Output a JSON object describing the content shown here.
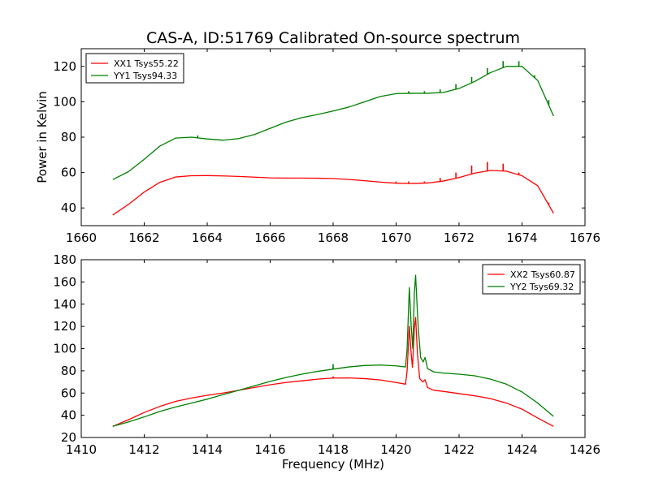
{
  "chart_data": [
    {
      "type": "line",
      "title": "CAS-A, ID:51769 Calibrated On-source spectrum",
      "xlabel": "",
      "ylabel": "Power in Kelvin",
      "xlim": [
        1660,
        1676
      ],
      "ylim": [
        30,
        130
      ],
      "x_ticks": [
        "1660",
        "1662",
        "1664",
        "1666",
        "1668",
        "1670",
        "1672",
        "1674",
        "1676"
      ],
      "y_ticks": [
        "40",
        "60",
        "80",
        "100",
        "120"
      ],
      "legend": "top-left",
      "grid": false,
      "series": [
        {
          "name": "XX1 Tsys55.22",
          "color": "#ff0000",
          "points": [
            [
              1661.0,
              36
            ],
            [
              1661.5,
              42
            ],
            [
              1662.0,
              49
            ],
            [
              1662.5,
              54.5
            ],
            [
              1663.0,
              57.5
            ],
            [
              1663.5,
              58.2
            ],
            [
              1664.0,
              58.3
            ],
            [
              1664.5,
              58.1
            ],
            [
              1665.0,
              57.8
            ],
            [
              1665.5,
              57.4
            ],
            [
              1666.0,
              57.0
            ],
            [
              1666.5,
              56.9
            ],
            [
              1667.0,
              56.9
            ],
            [
              1667.5,
              56.8
            ],
            [
              1668.0,
              56.6
            ],
            [
              1668.5,
              56.1
            ],
            [
              1669.0,
              55.4
            ],
            [
              1669.5,
              54.6
            ],
            [
              1670.0,
              54.0
            ],
            [
              1670.5,
              53.8
            ],
            [
              1671.0,
              54.1
            ],
            [
              1671.5,
              55.2
            ],
            [
              1672.0,
              57.2
            ],
            [
              1672.5,
              59.7
            ],
            [
              1673.0,
              61.2
            ],
            [
              1673.5,
              60.8
            ],
            [
              1674.0,
              58.2
            ],
            [
              1674.5,
              52.5
            ],
            [
              1675.0,
              37
            ]
          ],
          "spikes": [
            [
              1670.0,
              55
            ],
            [
              1670.4,
              55
            ],
            [
              1670.9,
              55
            ],
            [
              1671.4,
              57
            ],
            [
              1671.9,
              60
            ],
            [
              1672.4,
              64
            ],
            [
              1672.9,
              66
            ],
            [
              1673.4,
              65
            ],
            [
              1673.9,
              60
            ],
            [
              1674.4,
              54
            ],
            [
              1674.85,
              43
            ]
          ]
        },
        {
          "name": "YY1 Tsys94.33",
          "color": "#008000",
          "points": [
            [
              1661.0,
              56
            ],
            [
              1661.5,
              60.5
            ],
            [
              1662.0,
              67.5
            ],
            [
              1662.5,
              75
            ],
            [
              1663.0,
              79.5
            ],
            [
              1663.5,
              80.0
            ],
            [
              1664.0,
              79.0
            ],
            [
              1664.5,
              78.3
            ],
            [
              1665.0,
              79.2
            ],
            [
              1665.5,
              81.5
            ],
            [
              1666.0,
              85.0
            ],
            [
              1666.5,
              88.5
            ],
            [
              1667.0,
              91.0
            ],
            [
              1667.5,
              92.8
            ],
            [
              1668.0,
              94.8
            ],
            [
              1668.5,
              97.0
            ],
            [
              1669.0,
              100.0
            ],
            [
              1669.5,
              103.0
            ],
            [
              1670.0,
              104.6
            ],
            [
              1670.5,
              104.8
            ],
            [
              1671.0,
              104.8
            ],
            [
              1671.5,
              105.3
            ],
            [
              1672.0,
              107.5
            ],
            [
              1672.5,
              111.5
            ],
            [
              1673.0,
              116.5
            ],
            [
              1673.5,
              120.0
            ],
            [
              1674.0,
              120.0
            ],
            [
              1674.5,
              112.0
            ],
            [
              1675.0,
              92
            ]
          ],
          "spikes": [
            [
              1663.7,
              81
            ],
            [
              1670.4,
              106
            ],
            [
              1670.9,
              106
            ],
            [
              1671.4,
              107
            ],
            [
              1671.9,
              110
            ],
            [
              1672.4,
              114
            ],
            [
              1672.9,
              119
            ],
            [
              1673.4,
              123
            ],
            [
              1673.9,
              123
            ],
            [
              1674.4,
              115
            ],
            [
              1674.85,
              101
            ]
          ]
        }
      ]
    },
    {
      "type": "line",
      "title": "",
      "xlabel": "Frequency (MHz)",
      "ylabel": "",
      "xlim": [
        1410,
        1426
      ],
      "ylim": [
        20,
        180
      ],
      "x_ticks": [
        "1410",
        "1412",
        "1414",
        "1416",
        "1418",
        "1420",
        "1422",
        "1424",
        "1426"
      ],
      "y_ticks": [
        "20",
        "40",
        "60",
        "80",
        "100",
        "120",
        "140",
        "160",
        "180"
      ],
      "legend": "top-right",
      "grid": false,
      "series": [
        {
          "name": "XX2 Tsys60.87",
          "color": "#ff0000",
          "points": [
            [
              1411.0,
              30
            ],
            [
              1411.5,
              36
            ],
            [
              1412.0,
              42.5
            ],
            [
              1412.5,
              48
            ],
            [
              1413.0,
              52.5
            ],
            [
              1413.5,
              55.5
            ],
            [
              1414.0,
              58
            ],
            [
              1414.5,
              60
            ],
            [
              1415.0,
              62.5
            ],
            [
              1415.5,
              65
            ],
            [
              1416.0,
              67.5
            ],
            [
              1416.5,
              69.5
            ],
            [
              1417.0,
              71
            ],
            [
              1417.5,
              72.5
            ],
            [
              1418.0,
              73.5
            ],
            [
              1418.5,
              73.6
            ],
            [
              1419.0,
              73
            ],
            [
              1419.5,
              71.8
            ],
            [
              1420.0,
              69.5
            ],
            [
              1420.3,
              68
            ],
            [
              1420.35,
              80
            ],
            [
              1420.42,
              120
            ],
            [
              1420.48,
              95
            ],
            [
              1420.52,
              83
            ],
            [
              1420.58,
              118
            ],
            [
              1420.62,
              128
            ],
            [
              1420.68,
              95
            ],
            [
              1420.75,
              73
            ],
            [
              1420.85,
              70
            ],
            [
              1420.92,
              72
            ],
            [
              1421.0,
              65
            ],
            [
              1421.2,
              62.5
            ],
            [
              1421.5,
              61.5
            ],
            [
              1422.0,
              59.5
            ],
            [
              1422.5,
              57.5
            ],
            [
              1423.0,
              55
            ],
            [
              1423.5,
              51
            ],
            [
              1424.0,
              45.5
            ],
            [
              1424.5,
              37.5
            ],
            [
              1425.0,
              30
            ]
          ],
          "spikes": [
            [
              1418.0,
              75
            ]
          ]
        },
        {
          "name": "YY2 Tsys69.32",
          "color": "#008000",
          "points": [
            [
              1411.0,
              30
            ],
            [
              1411.5,
              34
            ],
            [
              1412.0,
              38.5
            ],
            [
              1412.5,
              43.5
            ],
            [
              1413.0,
              47.5
            ],
            [
              1413.5,
              51
            ],
            [
              1414.0,
              54.5
            ],
            [
              1414.5,
              58.5
            ],
            [
              1415.0,
              62.5
            ],
            [
              1415.5,
              66.5
            ],
            [
              1416.0,
              70.5
            ],
            [
              1416.5,
              74
            ],
            [
              1417.0,
              77
            ],
            [
              1417.5,
              79.5
            ],
            [
              1418.0,
              81.5
            ],
            [
              1418.5,
              83.5
            ],
            [
              1419.0,
              84.8
            ],
            [
              1419.5,
              85.2
            ],
            [
              1420.0,
              84.5
            ],
            [
              1420.3,
              83.5
            ],
            [
              1420.35,
              100
            ],
            [
              1420.42,
              155
            ],
            [
              1420.48,
              120
            ],
            [
              1420.53,
              100
            ],
            [
              1420.58,
              150
            ],
            [
              1420.62,
              166
            ],
            [
              1420.7,
              120
            ],
            [
              1420.78,
              92
            ],
            [
              1420.86,
              88
            ],
            [
              1420.92,
              92
            ],
            [
              1421.0,
              82
            ],
            [
              1421.2,
              79
            ],
            [
              1421.5,
              78
            ],
            [
              1422.0,
              77
            ],
            [
              1422.5,
              75.5
            ],
            [
              1423.0,
              72.5
            ],
            [
              1423.5,
              68
            ],
            [
              1424.0,
              61
            ],
            [
              1424.5,
              51
            ],
            [
              1425.0,
              39
            ]
          ],
          "spikes": [
            [
              1418.0,
              86
            ]
          ]
        }
      ]
    }
  ]
}
